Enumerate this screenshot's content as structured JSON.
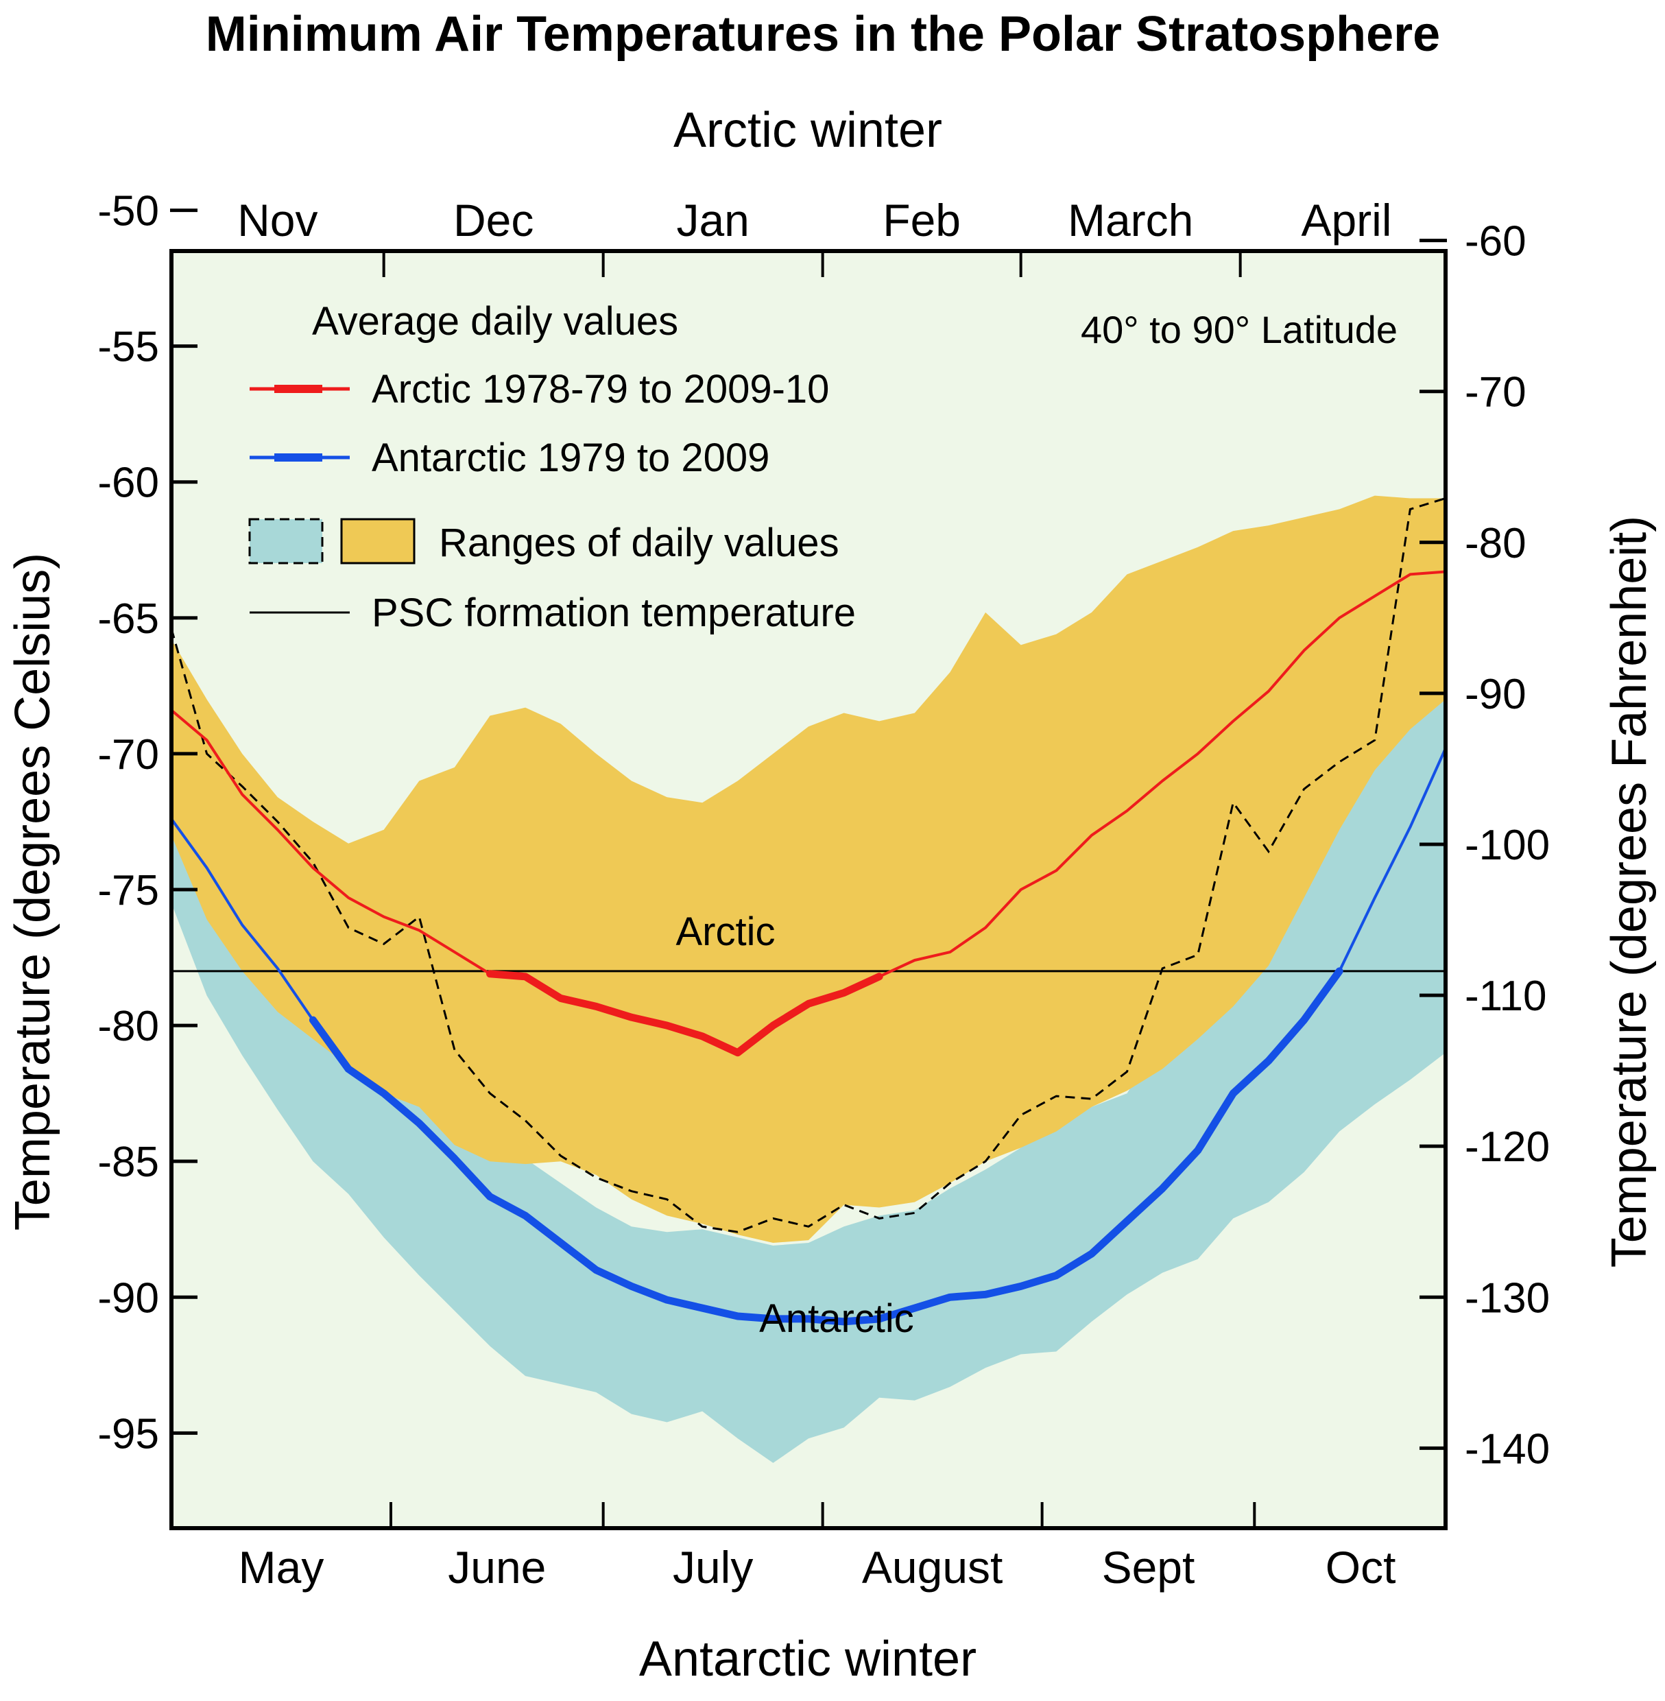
{
  "title": "Minimum Air Temperatures in the Polar Stratosphere",
  "top_axis_title": "Arctic winter",
  "bottom_axis_title": "Antarctic winter",
  "left_axis_title": "Temperature (degrees Celsius)",
  "right_axis_title": "Temperature (degrees Fahrenheit)",
  "latitude_note": "40° to 90° Latitude",
  "region_labels": {
    "arctic": "Arctic",
    "antarctic": "Antarctic"
  },
  "legend": {
    "heading": "Average daily values",
    "arctic_label": "Arctic 1978-79 to 2009-10",
    "antarctic_label": "Antarctic 1979 to 2009",
    "ranges_label": "Ranges of daily values",
    "psc_label": "PSC formation temperature"
  },
  "colors": {
    "background": "#eef7e8",
    "arctic_line": "#ee1c1c",
    "antarctic_line": "#1450e6",
    "arctic_range": "#efc955",
    "antarctic_range": "#a8d8d8",
    "psc_line": "#000000"
  },
  "chart_data": {
    "type": "area",
    "x_unit": "day of winter season (top axis: 1 Nov = 0; bottom axis: 1 May = 0)",
    "xlim": [
      0,
      180
    ],
    "ylim": [
      -51.5,
      -98.5
    ],
    "top_months": [
      "Nov",
      "Dec",
      "Jan",
      "Feb",
      "March",
      "April"
    ],
    "bottom_months": [
      "May",
      "June",
      "July",
      "August",
      "Sept",
      "Oct"
    ],
    "left_ticks_c": [
      -50,
      -55,
      -60,
      -65,
      -70,
      -75,
      -80,
      -85,
      -90,
      -95
    ],
    "right_ticks_f": [
      -60,
      -70,
      -80,
      -90,
      -100,
      -110,
      -120,
      -130,
      -140
    ],
    "psc_temperature_c": -78,
    "x": [
      0,
      5,
      10,
      15,
      20,
      25,
      30,
      35,
      40,
      45,
      50,
      55,
      60,
      65,
      70,
      75,
      80,
      85,
      90,
      95,
      100,
      105,
      110,
      115,
      120,
      125,
      130,
      135,
      140,
      145,
      150,
      155,
      160,
      165,
      170,
      175,
      180
    ],
    "series": [
      {
        "name": "Arctic 1978-79 to 2009-10",
        "values": [
          -68.4,
          -69.5,
          -71.5,
          -72.8,
          -74.2,
          -75.3,
          -76.0,
          -76.5,
          -77.3,
          -78.1,
          -78.2,
          -79.0,
          -79.3,
          -79.7,
          -80.0,
          -80.4,
          -81.0,
          -80.0,
          -79.2,
          -78.8,
          -78.2,
          -77.6,
          -77.3,
          -76.4,
          -75.0,
          -74.3,
          -73.0,
          -72.1,
          -71.0,
          -70.0,
          -68.8,
          -67.7,
          -66.2,
          -65.0,
          -64.2,
          -63.4,
          -63.3
        ]
      },
      {
        "name": "Antarctic 1979 to 2009",
        "values": [
          -72.4,
          -74.2,
          -76.3,
          -77.9,
          -79.8,
          -81.6,
          -82.5,
          -83.6,
          -84.9,
          -86.3,
          -87.0,
          -88.0,
          -89.0,
          -89.6,
          -90.1,
          -90.4,
          -90.7,
          -90.8,
          -90.8,
          -90.9,
          -90.8,
          -90.4,
          -90.0,
          -89.9,
          -89.6,
          -89.2,
          -88.4,
          -87.2,
          -86.0,
          -84.6,
          -82.5,
          -81.3,
          -79.8,
          -78.0,
          -75.3,
          -72.7,
          -69.8
        ]
      },
      {
        "name": "Arctic range max",
        "values": [
          -65.8,
          -68.0,
          -70.0,
          -71.6,
          -72.5,
          -73.3,
          -72.8,
          -71.0,
          -70.5,
          -68.6,
          -68.3,
          -68.9,
          -70.0,
          -71.0,
          -71.6,
          -71.8,
          -71.0,
          -70.0,
          -69.0,
          -68.5,
          -68.8,
          -68.5,
          -67.0,
          -64.8,
          -66.0,
          -65.6,
          -64.8,
          -63.4,
          -62.9,
          -62.4,
          -61.8,
          -61.6,
          -61.3,
          -61.0,
          -60.5,
          -60.6,
          -60.6
        ]
      },
      {
        "name": "Arctic range min",
        "values": [
          -73.0,
          -76.1,
          -78.0,
          -79.5,
          -80.5,
          -81.5,
          -82.5,
          -83.0,
          -84.4,
          -85.0,
          -85.1,
          -85.0,
          -85.5,
          -86.4,
          -87.0,
          -87.3,
          -87.7,
          -88.0,
          -87.9,
          -86.6,
          -86.7,
          -86.5,
          -85.8,
          -85.0,
          -84.5,
          -83.9,
          -83.0,
          -82.4,
          -81.6,
          -80.5,
          -79.3,
          -77.8,
          -75.3,
          -72.8,
          -70.6,
          -69.1,
          -68.0
        ]
      },
      {
        "name": "Antarctic range max",
        "values": [
          -69.5,
          -73.8,
          -75.5,
          -76.8,
          -78.9,
          -79.6,
          -80.9,
          -82.1,
          -83.4,
          -84.6,
          -84.9,
          -85.8,
          -86.7,
          -87.4,
          -87.6,
          -87.5,
          -87.8,
          -88.1,
          -88.0,
          -87.4,
          -87.0,
          -86.8,
          -86.0,
          -85.3,
          -84.5,
          -83.7,
          -83.0,
          -82.5,
          -80.4,
          -78.2,
          -76.0,
          -74.1,
          -71.3,
          -69.3,
          -67.5,
          -64.3,
          -61.3
        ]
      },
      {
        "name": "Antarctic range min",
        "values": [
          -75.5,
          -78.9,
          -81.1,
          -83.1,
          -85.0,
          -86.2,
          -87.8,
          -89.2,
          -90.5,
          -91.8,
          -92.9,
          -93.2,
          -93.5,
          -94.3,
          -94.6,
          -94.2,
          -95.2,
          -96.1,
          -95.2,
          -94.8,
          -93.7,
          -93.8,
          -93.3,
          -92.6,
          -92.1,
          -92.0,
          -90.9,
          -89.9,
          -89.1,
          -88.6,
          -87.1,
          -86.5,
          -85.4,
          -83.9,
          -82.9,
          -82.0,
          -81.0
        ]
      },
      {
        "name": "Arctic range min (dashed)",
        "values": [
          -65.4,
          -70.0,
          -71.2,
          -72.5,
          -74.0,
          -76.4,
          -77.0,
          -76.0,
          -80.9,
          -82.5,
          -83.5,
          -84.8,
          -85.6,
          -86.1,
          -86.4,
          -87.4,
          -87.6,
          -87.1,
          -87.4,
          -86.6,
          -87.1,
          -86.9,
          -85.8,
          -85.0,
          -83.3,
          -82.6,
          -82.7,
          -81.7,
          -77.9,
          -77.4,
          -71.8,
          -73.6,
          -71.3,
          -70.3,
          -69.5,
          -61.0,
          -60.6
        ]
      }
    ]
  }
}
